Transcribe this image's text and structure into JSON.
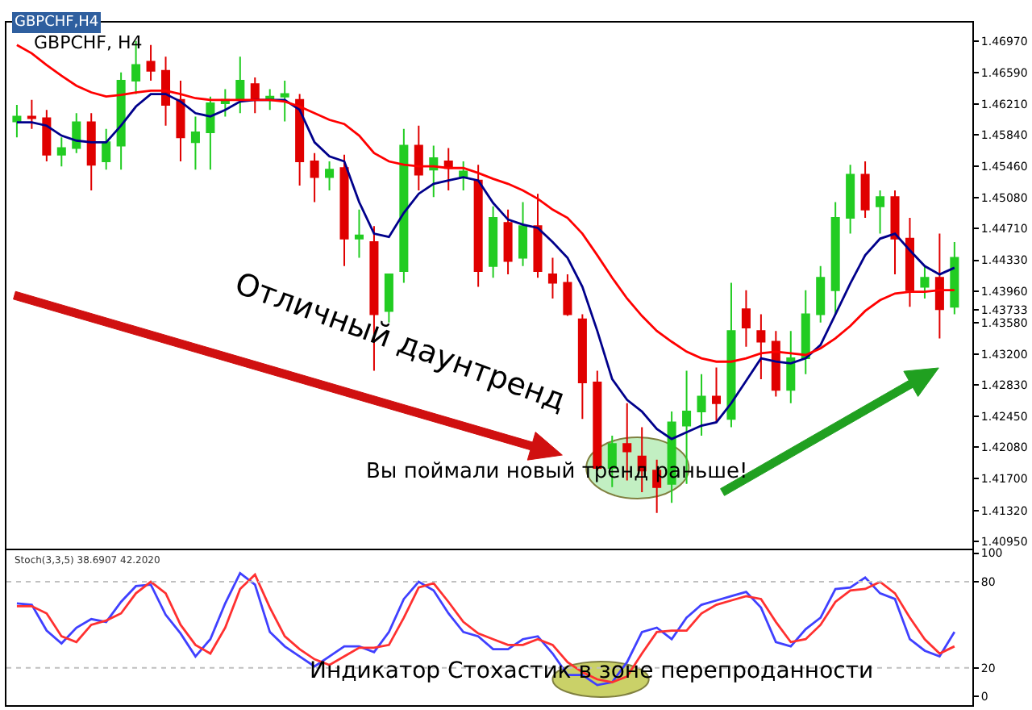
{
  "chart_data": [
    {
      "type": "candlestick",
      "title": "GBPCHF, H4",
      "categories": [
        null,
        null,
        null,
        null,
        null,
        null,
        null,
        null,
        null,
        null,
        null,
        null,
        null,
        null,
        null,
        null,
        null,
        null,
        null,
        null,
        null,
        null,
        null,
        null,
        null,
        null,
        null,
        null,
        null,
        null,
        null,
        null,
        null,
        null,
        null,
        null,
        null,
        null,
        null,
        null,
        null,
        null,
        null,
        null,
        null,
        null,
        null,
        null,
        null,
        null,
        null,
        null,
        null,
        null,
        null,
        null,
        null,
        null,
        null,
        null,
        null,
        null,
        null,
        null
      ],
      "ohlc": [
        [
          1.46,
          1.462,
          1.4581,
          1.4606
        ],
        [
          1.4606,
          1.4626,
          1.4591,
          1.4604
        ],
        [
          1.4604,
          1.4614,
          1.4552,
          1.456
        ],
        [
          1.456,
          1.4581,
          1.4546,
          1.4568
        ],
        [
          1.4568,
          1.461,
          1.4562,
          1.4599
        ],
        [
          1.4599,
          1.461,
          1.4517,
          1.4548
        ],
        [
          1.4552,
          1.4591,
          1.4542,
          1.4575
        ],
        [
          1.4571,
          1.4659,
          1.4542,
          1.4649
        ],
        [
          1.4649,
          1.4697,
          1.4633,
          1.4668
        ],
        [
          1.4672,
          1.4692,
          1.4649,
          1.4661
        ],
        [
          1.4661,
          1.4678,
          1.4595,
          1.462
        ],
        [
          1.4626,
          1.4649,
          1.4552,
          1.4581
        ],
        [
          1.4575,
          1.4606,
          1.4542,
          1.4587
        ],
        [
          1.4587,
          1.463,
          1.4542,
          1.4622
        ],
        [
          1.4622,
          1.4639,
          1.4606,
          1.4626
        ],
        [
          1.4626,
          1.4678,
          1.461,
          1.4649
        ],
        [
          1.4645,
          1.4653,
          1.461,
          1.4626
        ],
        [
          1.4626,
          1.4639,
          1.4614,
          1.463
        ],
        [
          1.463,
          1.4649,
          1.46,
          1.4633
        ],
        [
          1.4626,
          1.4633,
          1.4523,
          1.4552
        ],
        [
          1.4552,
          1.4562,
          1.4503,
          1.4533
        ],
        [
          1.4533,
          1.4552,
          1.4517,
          1.4542
        ],
        [
          1.4544,
          1.456,
          1.4426,
          1.4459
        ],
        [
          1.4459,
          1.4494,
          1.4436,
          1.4463
        ],
        [
          1.4455,
          1.4474,
          1.43,
          1.4368
        ],
        [
          1.4372,
          1.4416,
          1.4358,
          1.4416
        ],
        [
          1.442,
          1.4591,
          1.4406,
          1.4571
        ],
        [
          1.4571,
          1.4595,
          1.4517,
          1.4536
        ],
        [
          1.4542,
          1.4571,
          1.4509,
          1.4556
        ],
        [
          1.4552,
          1.4568,
          1.4517,
          1.4544
        ],
        [
          1.4533,
          1.4552,
          1.4517,
          1.454
        ],
        [
          1.4529,
          1.4548,
          1.4401,
          1.442
        ],
        [
          1.4426,
          1.4498,
          1.4412,
          1.4484
        ],
        [
          1.4478,
          1.4494,
          1.4416,
          1.4432
        ],
        [
          1.4436,
          1.4503,
          1.4426,
          1.4474
        ],
        [
          1.4474,
          1.4513,
          1.4412,
          1.442
        ],
        [
          1.4416,
          1.4436,
          1.4387,
          1.4406
        ],
        [
          1.4406,
          1.4416,
          1.4366,
          1.4368
        ],
        [
          1.4362,
          1.4368,
          1.4242,
          1.4286
        ],
        [
          1.4286,
          1.43,
          1.418,
          1.4183
        ],
        [
          1.4183,
          1.4222,
          1.416,
          1.4212
        ],
        [
          1.4212,
          1.4261,
          1.4168,
          1.4203
        ],
        [
          1.4197,
          1.4232,
          1.4154,
          1.418
        ],
        [
          1.418,
          1.4193,
          1.4129,
          1.416
        ],
        [
          1.4164,
          1.4251,
          1.4141,
          1.4238
        ],
        [
          1.4234,
          1.43,
          1.4164,
          1.4251
        ],
        [
          1.4251,
          1.4296,
          1.4222,
          1.4269
        ],
        [
          1.4269,
          1.4304,
          1.4238,
          1.4261
        ],
        [
          1.4242,
          1.4406,
          1.4232,
          1.4348
        ],
        [
          1.4374,
          1.4397,
          1.4329,
          1.4352
        ],
        [
          1.4348,
          1.4368,
          1.429,
          1.4335
        ],
        [
          1.4335,
          1.4348,
          1.4269,
          1.4277
        ],
        [
          1.4277,
          1.4348,
          1.4261,
          1.4315
        ],
        [
          1.4315,
          1.4397,
          1.4296,
          1.4368
        ],
        [
          1.4368,
          1.4426,
          1.4358,
          1.4412
        ],
        [
          1.4397,
          1.4503,
          1.4368,
          1.4484
        ],
        [
          1.4484,
          1.4548,
          1.4465,
          1.4536
        ],
        [
          1.4536,
          1.4552,
          1.4484,
          1.4494
        ],
        [
          1.4498,
          1.4517,
          1.4465,
          1.4509
        ],
        [
          1.4509,
          1.4517,
          1.4416,
          1.4459
        ],
        [
          1.4459,
          1.4484,
          1.4377,
          1.4397
        ],
        [
          1.4401,
          1.4426,
          1.4387,
          1.4412
        ],
        [
          1.4412,
          1.4465,
          1.4339,
          1.4374
        ],
        [
          1.4377,
          1.4455,
          1.4368,
          1.4436
        ]
      ],
      "colors": [
        "#22cc22",
        "#e00000",
        "#e00000",
        "#22cc22",
        "#22cc22",
        "#e00000",
        "#22cc22",
        "#22cc22",
        "#22cc22",
        "#e00000",
        "#e00000",
        "#e00000",
        "#22cc22",
        "#22cc22",
        "#22cc22",
        "#22cc22",
        "#e00000",
        "#22cc22",
        "#22cc22",
        "#e00000",
        "#e00000",
        "#22cc22",
        "#e00000",
        "#22cc22",
        "#e00000",
        "#22cc22",
        "#22cc22",
        "#e00000",
        "#22cc22",
        "#e00000",
        "#22cc22",
        "#e00000",
        "#22cc22",
        "#e00000",
        "#22cc22",
        "#e00000",
        "#e00000",
        "#e00000",
        "#e00000",
        "#e00000",
        "#22cc22",
        "#e00000",
        "#e00000",
        "#e00000",
        "#22cc22",
        "#22cc22",
        "#22cc22",
        "#e00000",
        "#22cc22",
        "#e00000",
        "#e00000",
        "#e00000",
        "#22cc22",
        "#22cc22",
        "#22cc22",
        "#22cc22",
        "#22cc22",
        "#e00000",
        "#22cc22",
        "#e00000",
        "#e00000",
        "#22cc22",
        "#e00000",
        "#22cc22"
      ],
      "series": [
        {
          "type": "line",
          "color": "#00008b",
          "values": [
            1.4599,
            1.4599,
            1.4595,
            1.4583,
            1.4577,
            1.4575,
            1.4575,
            1.4595,
            1.4618,
            1.4633,
            1.4633,
            1.4624,
            1.461,
            1.4606,
            1.4614,
            1.4624,
            1.4626,
            1.4626,
            1.4626,
            1.4614,
            1.4575,
            1.4558,
            1.4552,
            1.4503,
            1.4465,
            1.4461,
            1.449,
            1.4513,
            1.4525,
            1.4529,
            1.4533,
            1.4529,
            1.4502,
            1.4482,
            1.4476,
            1.4472,
            1.4455,
            1.4436,
            1.4401,
            1.4348,
            1.429,
            1.4265,
            1.4251,
            1.423,
            1.4218,
            1.4226,
            1.4234,
            1.4238,
            1.4261,
            1.4288,
            1.4315,
            1.4311,
            1.4309,
            1.4315,
            1.4331,
            1.4368,
            1.4405,
            1.4439,
            1.4459,
            1.4465,
            1.4445,
            1.4426,
            1.4416,
            1.4424
          ]
        },
        {
          "type": "line",
          "color": "#ff0000",
          "values": [
            1.4692,
            1.4682,
            1.4668,
            1.4655,
            1.4643,
            1.4635,
            1.463,
            1.4632,
            1.4635,
            1.4637,
            1.4637,
            1.4633,
            1.4628,
            1.4626,
            1.4626,
            1.4626,
            1.4626,
            1.4626,
            1.4624,
            1.4618,
            1.461,
            1.4602,
            1.4597,
            1.4583,
            1.4562,
            1.4552,
            1.4548,
            1.4546,
            1.4546,
            1.4544,
            1.4544,
            1.4538,
            1.4531,
            1.4525,
            1.4517,
            1.4507,
            1.4494,
            1.4484,
            1.4465,
            1.4439,
            1.4412,
            1.4387,
            1.4366,
            1.4348,
            1.4335,
            1.4323,
            1.4315,
            1.4311,
            1.4311,
            1.4315,
            1.4321,
            1.4323,
            1.4321,
            1.4319,
            1.4327,
            1.4339,
            1.4354,
            1.4372,
            1.4385,
            1.4393,
            1.4395,
            1.4395,
            1.4397,
            1.4397
          ]
        }
      ],
      "ylim": [
        1.4086,
        1.4719
      ],
      "yticks": [
        {
          "value": 1.4095,
          "label": "1.40950"
        },
        {
          "value": 1.4132,
          "label": "1.41320"
        },
        {
          "value": 1.417,
          "label": "1.41700"
        },
        {
          "value": 1.4208,
          "label": "1.42080"
        },
        {
          "value": 1.4245,
          "label": "1.42450"
        },
        {
          "value": 1.4283,
          "label": "1.42830"
        },
        {
          "value": 1.432,
          "label": "1.43200"
        },
        {
          "value": 1.4358,
          "label": "1.43580"
        },
        {
          "value": 1.43733,
          "label": "1.43733"
        },
        {
          "value": 1.4396,
          "label": "1.43960"
        },
        {
          "value": 1.4433,
          "label": "1.44330"
        },
        {
          "value": 1.4471,
          "label": "1.44710"
        },
        {
          "value": 1.4508,
          "label": "1.45080"
        },
        {
          "value": 1.4546,
          "label": "1.45460"
        },
        {
          "value": 1.4584,
          "label": "1.45840"
        },
        {
          "value": 1.4621,
          "label": "1.46210"
        },
        {
          "value": 1.4659,
          "label": "1.46590"
        },
        {
          "value": 1.4697,
          "label": "1.46970"
        }
      ],
      "tick_labels": "y",
      "grid": false,
      "annotations": [
        "GBPCHF,H4",
        "Отличный даунтренд",
        "Вы поймали новый тренд раньше!"
      ]
    },
    {
      "type": "line",
      "categories": [
        null,
        null,
        null,
        null,
        null,
        null,
        null,
        null,
        null,
        null,
        null,
        null,
        null,
        null,
        null,
        null,
        null,
        null,
        null,
        null,
        null,
        null,
        null,
        null,
        null,
        null,
        null,
        null,
        null,
        null,
        null,
        null,
        null,
        null,
        null,
        null,
        null,
        null,
        null,
        null,
        null,
        null,
        null,
        null,
        null,
        null,
        null,
        null,
        null,
        null,
        null,
        null,
        null,
        null,
        null,
        null,
        null,
        null,
        null,
        null,
        null,
        null,
        null,
        null
      ],
      "series": [
        {
          "color": "#4040ff",
          "values": [
            65,
            64,
            46,
            37,
            48,
            54,
            52,
            66,
            77,
            78,
            57,
            44,
            28,
            40,
            65,
            86,
            78,
            45,
            35,
            28,
            21,
            28,
            35,
            35,
            31,
            45,
            68,
            80,
            74,
            58,
            45,
            42,
            33,
            33,
            40,
            42,
            30,
            15,
            15,
            8,
            10,
            24,
            45,
            48,
            40,
            55,
            64,
            67,
            70,
            73,
            62,
            38,
            35,
            47,
            55,
            75,
            76,
            83,
            72,
            68,
            40,
            32,
            28,
            45
          ]
        },
        {
          "color": "#ff3030",
          "values": [
            63,
            63,
            58,
            42,
            38,
            50,
            53,
            58,
            72,
            80,
            72,
            50,
            36,
            30,
            48,
            75,
            85,
            62,
            42,
            33,
            26,
            22,
            28,
            34,
            34,
            36,
            55,
            76,
            79,
            66,
            52,
            44,
            40,
            36,
            36,
            40,
            36,
            24,
            17,
            12,
            10,
            14,
            30,
            45,
            46,
            46,
            58,
            64,
            67,
            70,
            68,
            52,
            38,
            40,
            50,
            66,
            74,
            75,
            80,
            72,
            55,
            40,
            30,
            35
          ]
        }
      ],
      "ylim": [
        -6,
        102
      ],
      "yticks": [
        0,
        20,
        80,
        100
      ],
      "ref_lines": [
        {
          "axis": "y",
          "value": 20,
          "color": "#c0c0c0",
          "line_style": "dotted"
        },
        {
          "axis": "y",
          "value": 80,
          "color": "#c0c0c0",
          "line_style": "dotted"
        }
      ],
      "tick_labels": "y",
      "grid": false,
      "annotations": [
        "Stoch(3,3,5) 38.6907 42.2020",
        "Индикатор Стохастик в зоне перепроданности"
      ]
    }
  ]
}
